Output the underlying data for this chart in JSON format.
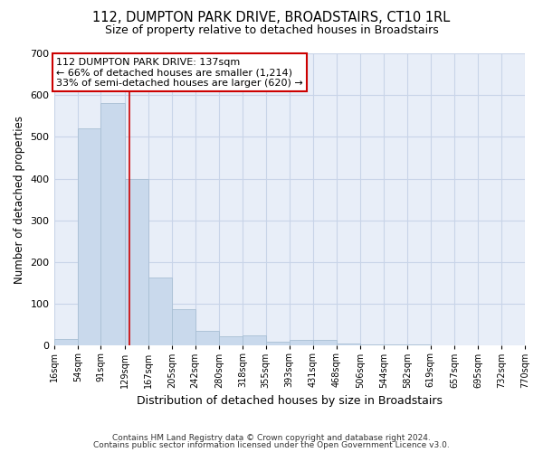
{
  "title": "112, DUMPTON PARK DRIVE, BROADSTAIRS, CT10 1RL",
  "subtitle": "Size of property relative to detached houses in Broadstairs",
  "xlabel": "Distribution of detached houses by size in Broadstairs",
  "ylabel": "Number of detached properties",
  "bar_edges": [
    16,
    54,
    91,
    129,
    167,
    205,
    242,
    280,
    318,
    355,
    393,
    431,
    468,
    506,
    544,
    582,
    619,
    657,
    695,
    732,
    770
  ],
  "bar_heights": [
    15,
    520,
    580,
    400,
    163,
    87,
    35,
    22,
    24,
    10,
    13,
    13,
    5,
    3,
    3,
    2,
    1,
    0,
    0,
    0
  ],
  "bar_color": "#c9d9ec",
  "bar_edgecolor": "#a8bfd4",
  "red_line_x": 137,
  "annotation_text": "112 DUMPTON PARK DRIVE: 137sqm\n← 66% of detached houses are smaller (1,214)\n33% of semi-detached houses are larger (620) →",
  "annotation_box_facecolor": "#ffffff",
  "annotation_box_edgecolor": "#cc0000",
  "ylim": [
    0,
    700
  ],
  "yticks": [
    0,
    100,
    200,
    300,
    400,
    500,
    600,
    700
  ],
  "grid_color": "#c8d4e8",
  "background_color": "#e8eef8",
  "footer_line1": "Contains HM Land Registry data © Crown copyright and database right 2024.",
  "footer_line2": "Contains public sector information licensed under the Open Government Licence v3.0.",
  "tick_labels": [
    "16sqm",
    "54sqm",
    "91sqm",
    "129sqm",
    "167sqm",
    "205sqm",
    "242sqm",
    "280sqm",
    "318sqm",
    "355sqm",
    "393sqm",
    "431sqm",
    "468sqm",
    "506sqm",
    "544sqm",
    "582sqm",
    "619sqm",
    "657sqm",
    "695sqm",
    "732sqm",
    "770sqm"
  ]
}
